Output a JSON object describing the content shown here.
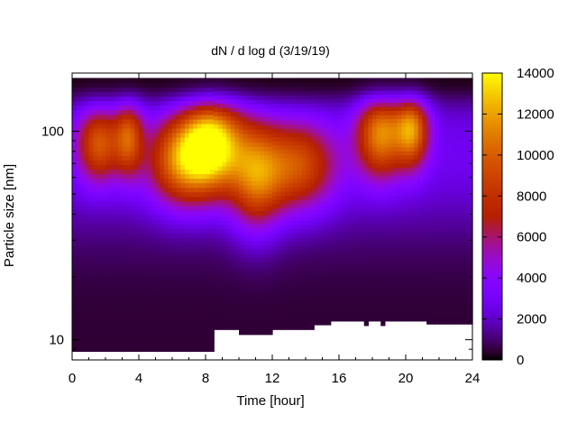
{
  "chart_data": {
    "type": "heatmap",
    "title": "dN / d log d (3/19/19)",
    "xlabel": "Time [hour]",
    "ylabel": "Particle size [nm]",
    "xlim": [
      0,
      24
    ],
    "ylim": [
      8,
      190
    ],
    "y_scale": "log",
    "x_ticks": [
      0,
      4,
      8,
      12,
      16,
      20,
      24
    ],
    "x_tick_labels": [
      "0",
      "4",
      "8",
      "12",
      "16",
      "20",
      "24"
    ],
    "y_ticks": [
      10,
      100
    ],
    "y_tick_labels": [
      "10",
      "100"
    ],
    "colorbar": {
      "range": [
        0,
        14000
      ],
      "ticks": [
        0,
        2000,
        4000,
        6000,
        8000,
        10000,
        12000,
        14000
      ],
      "tick_labels": [
        "0",
        "2000",
        "4000",
        "6000",
        "8000",
        "10000",
        "12000",
        "14000"
      ],
      "colormap": "gnuplot-pm3d-black-purple-red-yellow"
    },
    "grid": false,
    "data_top_nm": 180,
    "lower_size_cutoff": [
      {
        "t0": 0.0,
        "t1": 8.5,
        "d_min": 8.8
      },
      {
        "t0": 8.5,
        "t1": 10.0,
        "d_min": 11.2
      },
      {
        "t0": 10.0,
        "t1": 12.0,
        "d_min": 10.6
      },
      {
        "t0": 12.0,
        "t1": 14.5,
        "d_min": 11.2
      },
      {
        "t0": 14.5,
        "t1": 15.5,
        "d_min": 11.8
      },
      {
        "t0": 15.5,
        "t1": 17.5,
        "d_min": 12.3
      },
      {
        "t0": 17.5,
        "t1": 17.7,
        "d_min": 11.7
      },
      {
        "t0": 17.7,
        "t1": 18.5,
        "d_min": 12.3
      },
      {
        "t0": 18.5,
        "t1": 18.7,
        "d_min": 11.7
      },
      {
        "t0": 18.7,
        "t1": 21.3,
        "d_min": 12.3
      },
      {
        "t0": 21.3,
        "t1": 24.0,
        "d_min": 11.9
      }
    ],
    "modes": [
      {
        "t": 1.6,
        "d": 88,
        "peak": 7000,
        "st": 0.9,
        "sd": 0.13
      },
      {
        "t": 3.4,
        "d": 95,
        "peak": 6500,
        "st": 0.6,
        "sd": 0.13
      },
      {
        "t": 6.5,
        "d": 72,
        "peak": 7500,
        "st": 1.4,
        "sd": 0.15
      },
      {
        "t": 8.4,
        "d": 88,
        "peak": 11000,
        "st": 1.3,
        "sd": 0.16
      },
      {
        "t": 11.0,
        "d": 60,
        "peak": 7000,
        "st": 1.1,
        "sd": 0.18
      },
      {
        "t": 13.5,
        "d": 68,
        "peak": 6800,
        "st": 1.6,
        "sd": 0.15
      },
      {
        "t": 18.5,
        "d": 100,
        "peak": 8800,
        "st": 1.0,
        "sd": 0.15
      },
      {
        "t": 20.4,
        "d": 105,
        "peak": 8500,
        "st": 0.7,
        "sd": 0.13
      }
    ]
  }
}
